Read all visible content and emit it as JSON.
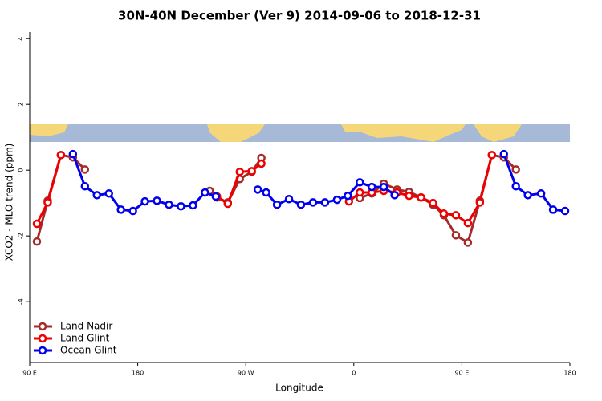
{
  "chart_data": {
    "type": "line",
    "title": "30N-40N December (Ver 9)   2014-09-06 to 2018-12-31",
    "x_label": "Longitude",
    "y_label": "XCO2 - MLO trend (ppm)",
    "xlim": [
      90,
      540
    ],
    "ylim": [
      -5.85,
      4.2
    ],
    "xticks": [
      {
        "value": 90,
        "label": "90 E"
      },
      {
        "value": 180,
        "label": "180"
      },
      {
        "value": 270,
        "label": "90 W"
      },
      {
        "value": 360,
        "label": "0"
      },
      {
        "value": 450,
        "label": "90 E"
      },
      {
        "value": 540,
        "label": "180"
      }
    ],
    "yticks": [
      4,
      2,
      0,
      -2,
      -4
    ],
    "legend": "bottom-left",
    "series": [
      {
        "name": "Land Nadir",
        "color": "#a52a2a",
        "x": [
          96,
          105,
          116,
          126,
          136,
          null,
          240,
          246,
          255,
          265,
          275,
          283,
          null,
          365,
          375,
          385,
          396,
          406,
          416,
          426,
          435,
          445,
          455,
          465,
          475,
          485,
          495
        ],
        "values": [
          -2.17,
          -0.93,
          0.46,
          0.39,
          0.02,
          null,
          -0.63,
          -0.83,
          -0.98,
          -0.27,
          -0.05,
          0.37,
          null,
          -0.85,
          -0.71,
          -0.41,
          -0.59,
          -0.66,
          -0.83,
          -1.05,
          -1.37,
          -1.98,
          -2.2,
          -0.93,
          0.46,
          0.39,
          0.02
        ]
      },
      {
        "name": "Land Glint",
        "color": "#ee0000",
        "x": [
          96,
          105,
          116,
          null,
          246,
          255,
          265,
          275,
          283,
          null,
          356,
          365,
          375,
          385,
          396,
          406,
          416,
          426,
          435,
          445,
          455,
          465,
          475
        ],
        "values": [
          -1.63,
          -0.98,
          0.46,
          null,
          -0.8,
          -1.02,
          -0.05,
          -0.03,
          0.2,
          null,
          -0.95,
          -0.68,
          -0.68,
          -0.63,
          -0.68,
          -0.78,
          -0.83,
          -1.0,
          -1.32,
          -1.37,
          -1.61,
          -0.98,
          0.46
        ]
      },
      {
        "name": "Ocean Glint",
        "color": "#0000ee",
        "x": [
          126,
          136,
          146,
          156,
          166,
          176,
          186,
          196,
          206,
          216,
          226,
          236,
          245,
          null,
          280,
          287,
          296,
          306,
          316,
          326,
          336,
          346,
          355,
          365,
          375,
          385,
          394,
          null,
          485,
          495,
          505,
          516,
          526,
          536
        ],
        "values": [
          0.49,
          -0.49,
          -0.76,
          -0.71,
          -1.2,
          -1.24,
          -0.95,
          -0.93,
          -1.05,
          -1.1,
          -1.07,
          -0.68,
          -0.8,
          null,
          -0.59,
          -0.68,
          -1.05,
          -0.88,
          -1.05,
          -0.98,
          -0.98,
          -0.9,
          -0.78,
          -0.37,
          -0.51,
          -0.51,
          -0.76,
          null,
          0.49,
          -0.49,
          -0.76,
          -0.71,
          -1.2,
          -1.24
        ]
      }
    ]
  }
}
